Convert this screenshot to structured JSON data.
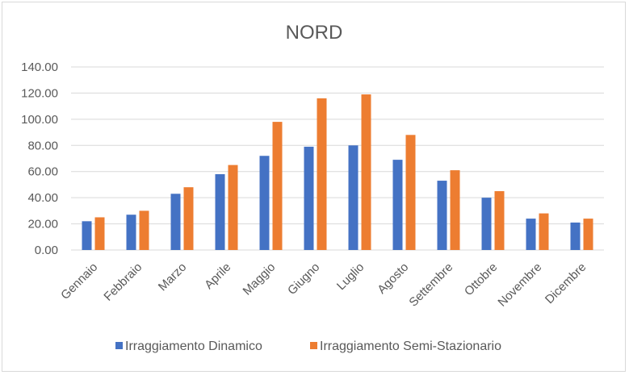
{
  "chart_data": {
    "type": "bar",
    "title": "NORD",
    "xlabel": "",
    "ylabel": "",
    "ylim": [
      0,
      140
    ],
    "yticks": [
      "0.00",
      "20.00",
      "40.00",
      "60.00",
      "80.00",
      "100.00",
      "120.00",
      "140.00"
    ],
    "grid": true,
    "legend_position": "bottom",
    "categories": [
      "Gennaio",
      "Febbraio",
      "Marzo",
      "Aprile",
      "Maggio",
      "Giugno",
      "Luglio",
      "Agosto",
      "Settembre",
      "Ottobre",
      "Novembre",
      "Dicembre"
    ],
    "series": [
      {
        "name": "Irraggiamento Dinamico",
        "color": "#4472c4",
        "values": [
          22,
          27,
          43,
          58,
          72,
          79,
          80,
          69,
          53,
          40,
          24,
          21
        ]
      },
      {
        "name": "Irraggiamento Semi-Stazionario",
        "color": "#ed7d31",
        "values": [
          25,
          30,
          48,
          65,
          98,
          116,
          119,
          88,
          61,
          45,
          28,
          24
        ]
      }
    ]
  }
}
